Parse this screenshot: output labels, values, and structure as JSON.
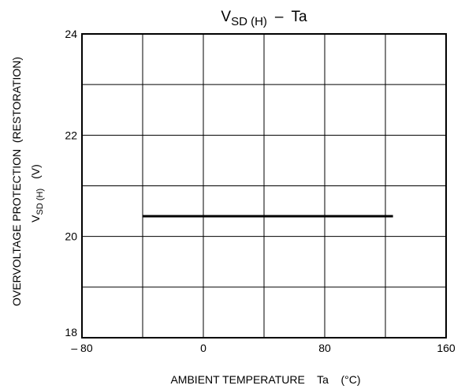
{
  "chart_data": {
    "type": "line",
    "title": {
      "main": "V",
      "sub": "SD (H)",
      "separator": "–",
      "rhs": "Ta"
    },
    "xlabel": "AMBIENT TEMPERATURE    Ta    (°C)",
    "ylabel_line1": "OVERVOLTAGE PROTECTION  (RESTORATION)",
    "ylabel_line2": {
      "main": "V",
      "sub": "SD (H)",
      "unit": "(V)"
    },
    "xlim": [
      -80,
      160
    ],
    "ylim": [
      18,
      24
    ],
    "x_ticks": [
      -80,
      -40,
      0,
      40,
      80,
      120,
      160
    ],
    "x_tick_labels": [
      "– 80",
      "",
      "0",
      "",
      "80",
      "",
      "160"
    ],
    "y_ticks": [
      18,
      19,
      20,
      21,
      22,
      23,
      24
    ],
    "y_tick_labels": [
      "18",
      "",
      "20",
      "",
      "22",
      "",
      "24"
    ],
    "grid": true,
    "series": [
      {
        "x": [
          -40,
          125
        ],
        "y": [
          20.4,
          20.4
        ],
        "color": "#000000"
      }
    ]
  }
}
